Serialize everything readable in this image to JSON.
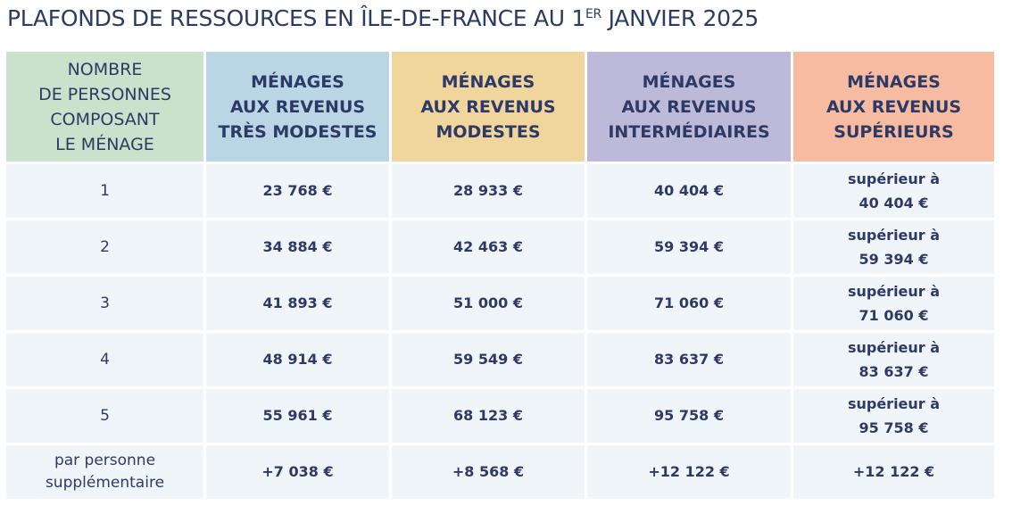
{
  "title": {
    "main": "PLAFONDS DE RESSOURCES EN ÎLE-DE-FRANCE AU 1",
    "sup": "ER",
    "rest": " JANVIER 2025"
  },
  "headers": [
    [
      "NOMBRE",
      "DE PERSONNES",
      "COMPOSANT",
      "LE MÉNAGE"
    ],
    [
      "MÉNAGES",
      "AUX REVENUS",
      "TRÈS MODESTES"
    ],
    [
      "MÉNAGES",
      "AUX REVENUS",
      "MODESTES"
    ],
    [
      "MÉNAGES",
      "AUX REVENUS",
      "INTERMÉDIAIRES"
    ],
    [
      "MÉNAGES",
      "AUX REVENUS",
      "SUPÉRIEURS"
    ]
  ],
  "superieur_prefix": "supérieur à",
  "rows": [
    {
      "label": "1",
      "tres_modestes": "23 768 €",
      "modestes": "28 933 €",
      "intermediaires": "40 404 €",
      "superieurs": "40 404 €"
    },
    {
      "label": "2",
      "tres_modestes": "34 884 €",
      "modestes": "42 463 €",
      "intermediaires": "59 394 €",
      "superieurs": "59 394 €"
    },
    {
      "label": "3",
      "tres_modestes": "41 893 €",
      "modestes": "51 000 €",
      "intermediaires": "71 060 €",
      "superieurs": "71 060 €"
    },
    {
      "label": "4",
      "tres_modestes": "48 914 €",
      "modestes": "59 549 €",
      "intermediaires": "83 637 €",
      "superieurs": "83 637 €"
    },
    {
      "label": "5",
      "tres_modestes": "55 961 €",
      "modestes": "68 123 €",
      "intermediaires": "95 758 €",
      "superieurs": "95 758 €"
    }
  ],
  "extra": {
    "label": [
      "par personne",
      "supplémentaire"
    ],
    "tres_modestes": "+7 038 €",
    "modestes": "+8 568 €",
    "intermediaires": "+12 122 €",
    "superieurs": "+12 122 €"
  }
}
